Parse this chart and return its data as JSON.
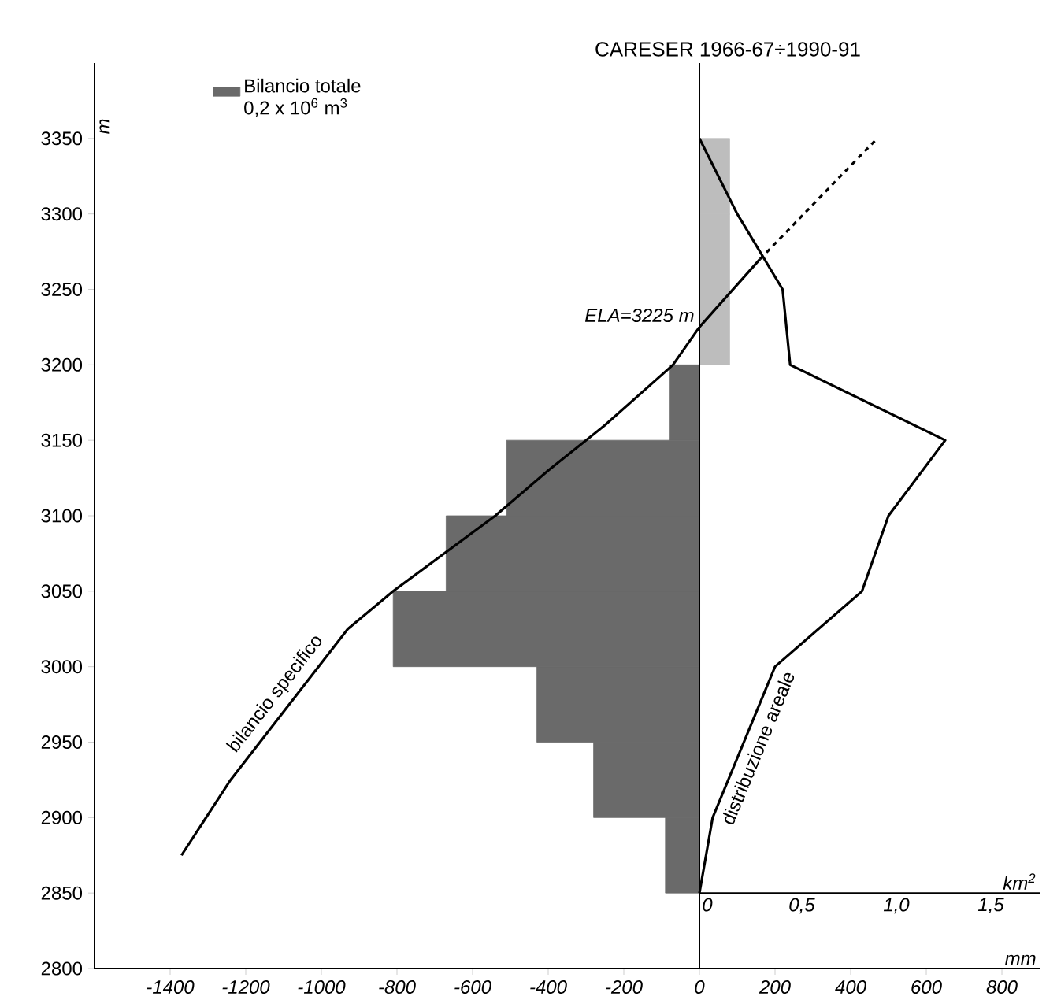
{
  "chart_data": {
    "type": "bar",
    "orientation": "horizontal",
    "title": "CARESER  1966-67÷1990-91",
    "xlabel": "mm",
    "ylabel": "m",
    "x2label": "km$^{2}$",
    "xlim": [
      -1600,
      900
    ],
    "xticks": [
      -1400,
      -1200,
      -1000,
      -800,
      -600,
      -400,
      -200,
      0,
      200,
      400,
      600,
      800
    ],
    "x2lim": [
      -3.2,
      1.8
    ],
    "x2ticks": [
      0,
      {
        "value": 0.5,
        "label": "0,5"
      },
      {
        "value": 1.0,
        "label": "1,0"
      },
      {
        "value": 1.5,
        "label": "1,5"
      }
    ],
    "ylim": [
      2800,
      3400
    ],
    "yticks": [
      2800,
      2850,
      2900,
      2950,
      3000,
      3050,
      3100,
      3150,
      3200,
      3250,
      3300,
      3350
    ],
    "legend": "top left",
    "ref_lines": [
      {
        "axis": "x",
        "value": 0,
        "color": "#000000"
      }
    ],
    "annotations": [
      {
        "text": "*ELA=3225 m*",
        "x": 0,
        "y": 3225
      }
    ],
    "series": [
      {
        "name": "Bilancio totale 0,2 x 10$^{6}$ m$^{3}$",
        "x": [
          2875,
          2925,
          2975,
          3025,
          3075,
          3125,
          3175,
          3225,
          3275,
          3325
        ],
        "values": [
          -90,
          -280,
          -430,
          -810,
          -670,
          -510,
          -80,
          80,
          80,
          80
        ],
        "colors": [
          "#6a6a6a",
          "#6a6a6a",
          "#6a6a6a",
          "#6a6a6a",
          "#6a6a6a",
          "#6a6a6a",
          "#6a6a6a",
          "#bdbdbd",
          "#bdbdbd",
          "#bdbdbd"
        ]
      },
      {
        "name": "bilancio specifico",
        "type": "line",
        "color": "#000000",
        "x": [
          2875,
          2925,
          3025,
          3050,
          3100,
          3130,
          3160,
          3200,
          3225,
          3270
        ],
        "values": [
          -1370,
          -1240,
          -930,
          -810,
          -540,
          -400,
          -250,
          -70,
          0,
          160
        ]
      },
      {
        "type": "line",
        "line_style": "dashed",
        "color": "#000000",
        "x": [
          3270,
          3350
        ],
        "values": [
          160,
          470
        ]
      },
      {
        "name": "distribuzione areale",
        "type": "line",
        "axis": "x2",
        "color": "#000000",
        "x": [
          2850,
          2900,
          3000,
          3050,
          3100,
          3150,
          3200,
          3250,
          3300,
          3350
        ],
        "values": [
          0,
          0.07,
          0.4,
          0.86,
          1.0,
          1.3,
          0.48,
          0.44,
          0.2,
          0
        ]
      }
    ]
  }
}
